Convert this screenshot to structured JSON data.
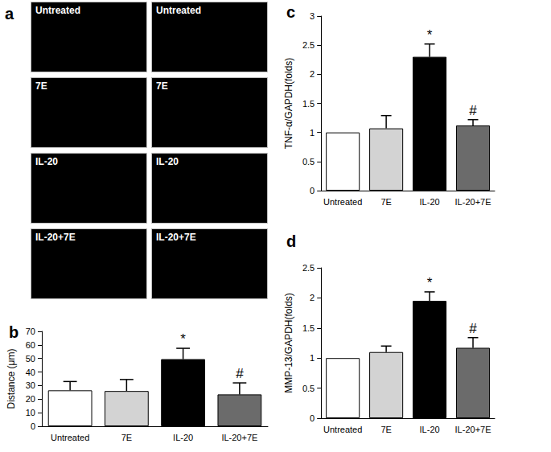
{
  "image_panel": {
    "title": "a",
    "tiles": [
      [
        "Untreated",
        "Untreated"
      ],
      [
        "7E",
        "7E"
      ],
      [
        "IL-20",
        "IL-20"
      ],
      [
        "IL-20+7E",
        "IL-20+7E"
      ]
    ]
  },
  "chart_data": [
    {
      "type": "bar",
      "title": "b",
      "y_label": "Distance (μm)",
      "categories": [
        "Untreated",
        "7E",
        "IL-20",
        "IL-20+7E"
      ],
      "values": [
        26.5,
        26,
        49.5,
        23.5
      ],
      "errors": [
        6.5,
        8.5,
        8,
        8.5
      ],
      "colors": [
        "#ffffff",
        "#d3d3d3",
        "#000000",
        "#6b6b6b"
      ],
      "annotations": [
        {
          "category": "IL-20",
          "text": "*"
        },
        {
          "category": "IL-20+7E",
          "text": "#"
        }
      ],
      "ylim": [
        0,
        70
      ],
      "yticks": [
        0,
        10,
        20,
        30,
        40,
        50,
        60,
        70
      ],
      "grid": false
    },
    {
      "type": "bar",
      "title": "c",
      "y_label": "TNF-α/GAPDH(folds)",
      "categories": [
        "Untreated",
        "7E",
        "IL-20",
        "IL-20+7E"
      ],
      "values": [
        1,
        1.07,
        2.3,
        1.12
      ],
      "errors": [
        0,
        0.22,
        0.22,
        0.1
      ],
      "colors": [
        "#ffffff",
        "#d3d3d3",
        "#000000",
        "#6b6b6b"
      ],
      "annotations": [
        {
          "category": "IL-20",
          "text": "*"
        },
        {
          "category": "IL-20+7E",
          "text": "#"
        }
      ],
      "ylim": [
        0,
        3
      ],
      "yticks": [
        0,
        0.5,
        1,
        1.5,
        2,
        2.5,
        3
      ],
      "grid": false
    },
    {
      "type": "bar",
      "title": "d",
      "y_label": "MMP-13/GAPDH(folds)",
      "categories": [
        "Untreated",
        "7E",
        "IL-20",
        "IL-20+7E"
      ],
      "values": [
        1,
        1.1,
        1.95,
        1.17
      ],
      "errors": [
        0,
        0.1,
        0.15,
        0.17
      ],
      "colors": [
        "#ffffff",
        "#d3d3d3",
        "#000000",
        "#6b6b6b"
      ],
      "annotations": [
        {
          "category": "IL-20",
          "text": "*"
        },
        {
          "category": "IL-20+7E",
          "text": "#"
        }
      ],
      "ylim": [
        0,
        2.5
      ],
      "yticks": [
        0,
        0.5,
        1,
        1.5,
        2,
        2.5
      ],
      "grid": false
    }
  ]
}
